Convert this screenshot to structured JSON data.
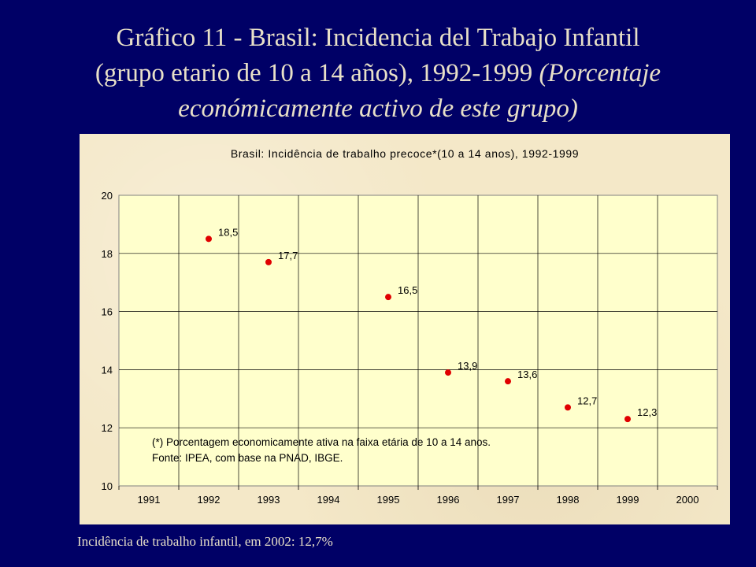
{
  "slide": {
    "title_line1": "Gráfico 11 - Brasil: Incidencia del Trabajo Infantil",
    "title_line2_plain": "(grupo etario de 10 a 14 años), 1992-1999 ",
    "title_line2_italic": "(Porcentaje",
    "title_line3_italic": "económicamente activo de este grupo)",
    "footer": "Incidência de trabalho infantil, em 2002: 12,7%"
  },
  "colors": {
    "background": "#000066",
    "title_text": "#e8e0c8",
    "panel": "#f4e8c8",
    "plot_area": "#ffffcc",
    "marker": "#e00000"
  },
  "chart_data": {
    "type": "scatter",
    "title": "Brasil: Incidência de trabalho precoce*(10 a 14 anos), 1992-1999",
    "xlabel": "",
    "ylabel": "",
    "x_categories": [
      "1991",
      "1992",
      "1993",
      "1994",
      "1995",
      "1996",
      "1997",
      "1998",
      "1999",
      "2000"
    ],
    "ylim": [
      10,
      20
    ],
    "yticks": [
      "10",
      "12",
      "14",
      "16",
      "18",
      "20"
    ],
    "grid": true,
    "legend": "none",
    "series": [
      {
        "points": [
          {
            "x": "1992",
            "y": 18.5,
            "label": "18,5"
          },
          {
            "x": "1993",
            "y": 17.7,
            "label": "17,7"
          },
          {
            "x": "1995",
            "y": 16.5,
            "label": "16,5"
          },
          {
            "x": "1996",
            "y": 13.9,
            "label": "13,9"
          },
          {
            "x": "1997",
            "y": 13.6,
            "label": "13,6"
          },
          {
            "x": "1998",
            "y": 12.7,
            "label": "12,7"
          },
          {
            "x": "1999",
            "y": 12.3,
            "label": "12,3"
          }
        ]
      }
    ],
    "annotations": [
      "(*) Porcentagem economicamente ativa na faixa etária de 10 a 14 anos.",
      "Fonte: IPEA, com base na PNAD, IBGE."
    ]
  }
}
